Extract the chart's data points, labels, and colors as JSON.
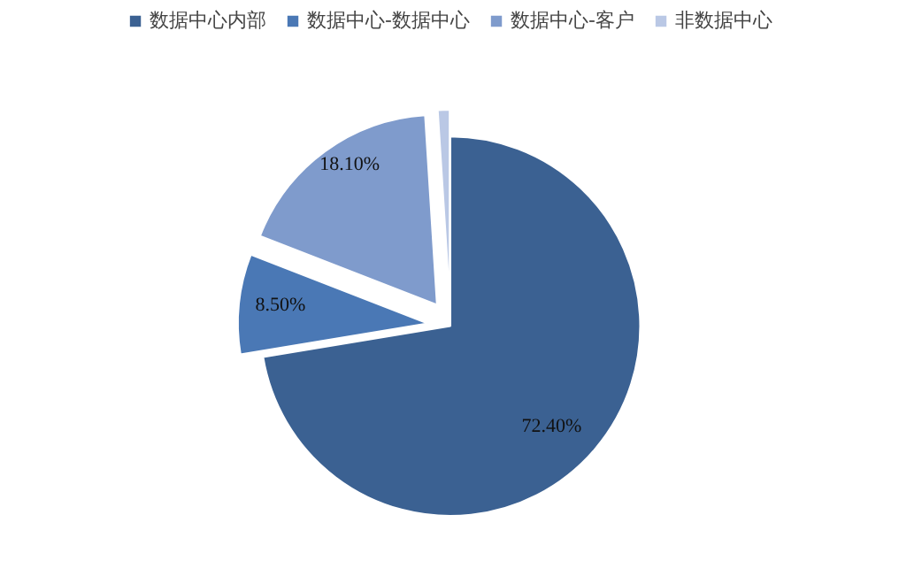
{
  "chart_data": {
    "type": "pie",
    "categories": [
      "数据中心内部",
      "数据中心-数据中心",
      "数据中心-客户",
      "非数据中心"
    ],
    "values": [
      72.4,
      8.5,
      18.1,
      1.0
    ],
    "value_labels": [
      "72.40%",
      "8.50%",
      "18.10%",
      null
    ],
    "colors": [
      "#3b6192",
      "#4a78b5",
      "#7f9bcc",
      "#bac8e5"
    ],
    "legend": "top"
  }
}
